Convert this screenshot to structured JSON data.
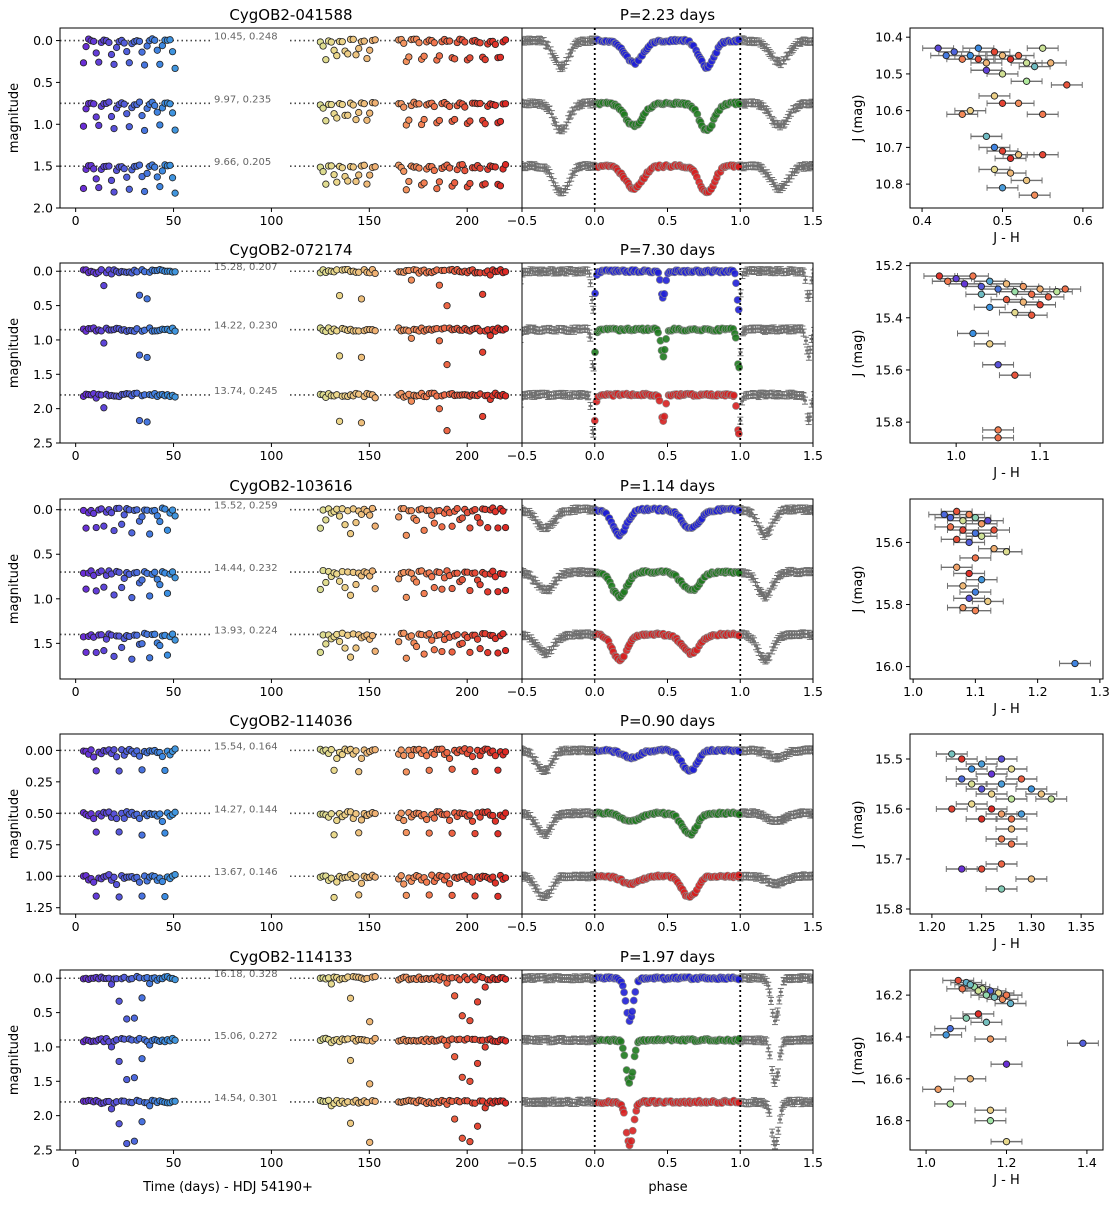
{
  "figure": {
    "xlabel_time": "Time (days) - HDJ 54190+",
    "xlabel_phase": "phase",
    "xlabel_cmd": "J - H",
    "ylabel_lc": "magnitude",
    "ylabel_cmd": "J (mag)"
  },
  "colors": {
    "line_J": "#1f1fd6",
    "line_H": "#1e7a1e",
    "line_K": "#d62020",
    "errbar": "#707070",
    "dotted": "#444444"
  },
  "chart_data": [
    {
      "type": "scatter",
      "title": "CygOB2-041588",
      "period_label": "P=2.23 days",
      "ylim": [
        2.0,
        -0.15
      ],
      "yticks": [
        0.0,
        0.5,
        1.0,
        1.5,
        2.0
      ],
      "xlim_time": [
        -8,
        228
      ],
      "xticks_time": [
        0,
        50,
        100,
        150,
        200
      ],
      "xlim_phase": [
        -0.5,
        1.5
      ],
      "xticks_phase": [
        -0.5,
        0.0,
        0.5,
        1.0,
        1.5
      ],
      "bands": [
        {
          "offset": 0.0,
          "label": "10.45,  0.248"
        },
        {
          "offset": 0.75,
          "label": "9.97,  0.235"
        },
        {
          "offset": 1.5,
          "label": "9.66,  0.205"
        }
      ],
      "eclipses": [
        {
          "c": 0.27,
          "w": 0.06,
          "d": 0.27
        },
        {
          "c": 0.77,
          "w": 0.05,
          "d": 0.32
        }
      ],
      "cmd": {
        "xlim": [
          0.385,
          0.625
        ],
        "xticks": [
          0.4,
          0.5,
          0.6
        ],
        "ylim": [
          10.865,
          10.375
        ],
        "yticks": [
          10.4,
          10.5,
          10.6,
          10.7,
          10.8
        ],
        "points": [
          [
            0.42,
            10.43
          ],
          [
            0.43,
            10.45
          ],
          [
            0.44,
            10.44
          ],
          [
            0.45,
            10.46
          ],
          [
            0.46,
            10.45
          ],
          [
            0.47,
            10.43
          ],
          [
            0.48,
            10.47
          ],
          [
            0.49,
            10.44
          ],
          [
            0.5,
            10.45
          ],
          [
            0.51,
            10.46
          ],
          [
            0.52,
            10.45
          ],
          [
            0.53,
            10.47
          ],
          [
            0.47,
            10.46
          ],
          [
            0.55,
            10.43
          ],
          [
            0.54,
            10.48
          ],
          [
            0.56,
            10.47
          ],
          [
            0.5,
            10.5
          ],
          [
            0.53,
            10.52
          ],
          [
            0.48,
            10.49
          ],
          [
            0.58,
            10.53
          ],
          [
            0.5,
            10.58
          ],
          [
            0.49,
            10.56
          ],
          [
            0.45,
            10.61
          ],
          [
            0.46,
            10.6
          ],
          [
            0.52,
            10.58
          ],
          [
            0.55,
            10.61
          ],
          [
            0.48,
            10.67
          ],
          [
            0.49,
            10.7
          ],
          [
            0.5,
            10.71
          ],
          [
            0.51,
            10.73
          ],
          [
            0.52,
            10.72
          ],
          [
            0.55,
            10.72
          ],
          [
            0.49,
            10.76
          ],
          [
            0.51,
            10.77
          ],
          [
            0.53,
            10.79
          ],
          [
            0.5,
            10.81
          ],
          [
            0.54,
            10.83
          ]
        ]
      }
    },
    {
      "type": "scatter",
      "title": "CygOB2-072174",
      "period_label": "P=7.30 days",
      "ylim": [
        2.5,
        -0.12
      ],
      "yticks": [
        0.0,
        0.5,
        1.0,
        1.5,
        2.0,
        2.5
      ],
      "xlim_time": [
        -8,
        228
      ],
      "xticks_time": [
        0,
        50,
        100,
        150,
        200
      ],
      "xlim_phase": [
        -0.5,
        1.5
      ],
      "xticks_phase": [
        -0.5,
        0.0,
        0.5,
        1.0,
        1.5
      ],
      "bands": [
        {
          "offset": 0.0,
          "label": "15.28,  0.207"
        },
        {
          "offset": 0.85,
          "label": "14.22,  0.230"
        },
        {
          "offset": 1.8,
          "label": "13.74,  0.245"
        }
      ],
      "eclipses": [
        {
          "c": 0.47,
          "w": 0.015,
          "d": 0.38
        },
        {
          "c": 0.99,
          "w": 0.012,
          "d": 0.55
        }
      ],
      "cmd": {
        "xlim": [
          0.945,
          1.175
        ],
        "xticks": [
          1.0,
          1.1
        ],
        "ylim": [
          15.88,
          15.19
        ],
        "yticks": [
          15.2,
          15.4,
          15.6,
          15.8
        ],
        "points": [
          [
            0.98,
            15.24
          ],
          [
            0.99,
            15.26
          ],
          [
            1.0,
            15.25
          ],
          [
            1.01,
            15.27
          ],
          [
            1.02,
            15.24
          ],
          [
            1.03,
            15.28
          ],
          [
            1.04,
            15.26
          ],
          [
            1.05,
            15.29
          ],
          [
            1.06,
            15.27
          ],
          [
            1.07,
            15.3
          ],
          [
            1.08,
            15.28
          ],
          [
            1.09,
            15.31
          ],
          [
            1.1,
            15.29
          ],
          [
            1.11,
            15.32
          ],
          [
            1.12,
            15.3
          ],
          [
            1.13,
            15.29
          ],
          [
            1.03,
            15.31
          ],
          [
            1.06,
            15.33
          ],
          [
            1.08,
            15.34
          ],
          [
            1.1,
            15.35
          ],
          [
            1.07,
            15.38
          ],
          [
            1.09,
            15.39
          ],
          [
            1.04,
            15.36
          ],
          [
            1.02,
            15.46
          ],
          [
            1.04,
            15.5
          ],
          [
            1.05,
            15.58
          ],
          [
            1.07,
            15.62
          ],
          [
            1.05,
            15.83
          ],
          [
            1.05,
            15.86
          ]
        ]
      }
    },
    {
      "type": "scatter",
      "title": "CygOB2-103616",
      "period_label": "P=1.14 days",
      "ylim": [
        1.9,
        -0.12
      ],
      "yticks": [
        0.0,
        0.5,
        1.0,
        1.5
      ],
      "xlim_time": [
        -8,
        228
      ],
      "xticks_time": [
        0,
        50,
        100,
        150,
        200
      ],
      "xlim_phase": [
        -0.5,
        1.5
      ],
      "xticks_phase": [
        -0.5,
        0.0,
        0.5,
        1.0,
        1.5
      ],
      "bands": [
        {
          "offset": 0.0,
          "label": "15.52,  0.259"
        },
        {
          "offset": 0.7,
          "label": "14.44,  0.232"
        },
        {
          "offset": 1.4,
          "label": "13.93,  0.224"
        }
      ],
      "eclipses": [
        {
          "c": 0.17,
          "w": 0.05,
          "d": 0.28
        },
        {
          "c": 0.66,
          "w": 0.06,
          "d": 0.21
        }
      ],
      "cmd": {
        "xlim": [
          0.995,
          1.305
        ],
        "xticks": [
          1.0,
          1.1,
          1.2,
          1.3
        ],
        "ylim": [
          16.04,
          15.46
        ],
        "yticks": [
          15.6,
          15.8,
          16.0
        ],
        "points": [
          [
            1.05,
            15.51
          ],
          [
            1.06,
            15.52
          ],
          [
            1.07,
            15.5
          ],
          [
            1.08,
            15.53
          ],
          [
            1.09,
            15.51
          ],
          [
            1.1,
            15.52
          ],
          [
            1.11,
            15.54
          ],
          [
            1.12,
            15.53
          ],
          [
            1.06,
            15.55
          ],
          [
            1.08,
            15.56
          ],
          [
            1.1,
            15.57
          ],
          [
            1.07,
            15.59
          ],
          [
            1.09,
            15.6
          ],
          [
            1.11,
            15.58
          ],
          [
            1.13,
            15.56
          ],
          [
            1.15,
            15.63
          ],
          [
            1.13,
            15.62
          ],
          [
            1.1,
            15.65
          ],
          [
            1.07,
            15.68
          ],
          [
            1.09,
            15.7
          ],
          [
            1.11,
            15.72
          ],
          [
            1.08,
            15.74
          ],
          [
            1.1,
            15.76
          ],
          [
            1.09,
            15.78
          ],
          [
            1.12,
            15.79
          ],
          [
            1.08,
            15.81
          ],
          [
            1.1,
            15.82
          ],
          [
            1.26,
            15.99
          ]
        ]
      }
    },
    {
      "type": "scatter",
      "title": "CygOB2-114036",
      "period_label": "P=0.90 days",
      "ylim": [
        1.3,
        -0.13
      ],
      "yticks": [
        0.0,
        0.25,
        0.5,
        0.75,
        1.0,
        1.25
      ],
      "xlim_time": [
        -8,
        228
      ],
      "xticks_time": [
        0,
        50,
        100,
        150,
        200
      ],
      "xlim_phase": [
        -0.5,
        1.5
      ],
      "xticks_phase": [
        -0.5,
        0.0,
        0.5,
        1.0,
        1.5
      ],
      "bands": [
        {
          "offset": 0.0,
          "label": "15.54,  0.164"
        },
        {
          "offset": 0.5,
          "label": "14.27,  0.144"
        },
        {
          "offset": 1.0,
          "label": "13.67,  0.146"
        }
      ],
      "eclipses": [
        {
          "c": 0.25,
          "w": 0.06,
          "d": 0.06
        },
        {
          "c": 0.65,
          "w": 0.05,
          "d": 0.17
        }
      ],
      "cmd": {
        "xlim": [
          1.178,
          1.372
        ],
        "xticks": [
          1.2,
          1.25,
          1.3,
          1.35
        ],
        "ylim": [
          15.81,
          15.45
        ],
        "yticks": [
          15.5,
          15.6,
          15.7,
          15.8
        ],
        "points": [
          [
            1.22,
            15.49
          ],
          [
            1.23,
            15.5
          ],
          [
            1.24,
            15.52
          ],
          [
            1.25,
            15.51
          ],
          [
            1.26,
            15.53
          ],
          [
            1.27,
            15.5
          ],
          [
            1.28,
            15.52
          ],
          [
            1.29,
            15.54
          ],
          [
            1.24,
            15.55
          ],
          [
            1.25,
            15.56
          ],
          [
            1.26,
            15.57
          ],
          [
            1.27,
            15.55
          ],
          [
            1.28,
            15.58
          ],
          [
            1.23,
            15.54
          ],
          [
            1.3,
            15.56
          ],
          [
            1.31,
            15.57
          ],
          [
            1.32,
            15.58
          ],
          [
            1.26,
            15.6
          ],
          [
            1.27,
            15.61
          ],
          [
            1.28,
            15.62
          ],
          [
            1.25,
            15.62
          ],
          [
            1.29,
            15.61
          ],
          [
            1.24,
            15.59
          ],
          [
            1.22,
            15.6
          ],
          [
            1.28,
            15.64
          ],
          [
            1.27,
            15.66
          ],
          [
            1.23,
            15.72
          ],
          [
            1.25,
            15.72
          ],
          [
            1.27,
            15.71
          ],
          [
            1.28,
            15.67
          ],
          [
            1.3,
            15.74
          ],
          [
            1.27,
            15.76
          ]
        ]
      }
    },
    {
      "type": "scatter",
      "title": "CygOB2-114133",
      "period_label": "P=1.97 days",
      "ylim": [
        2.5,
        -0.12
      ],
      "yticks": [
        0.0,
        0.5,
        1.0,
        1.5,
        2.0,
        2.5
      ],
      "xlim_time": [
        -8,
        228
      ],
      "xticks_time": [
        0,
        50,
        100,
        150,
        200
      ],
      "xlim_phase": [
        -0.5,
        1.5
      ],
      "xticks_phase": [
        -0.5,
        0.0,
        0.5,
        1.0,
        1.5
      ],
      "bands": [
        {
          "offset": 0.0,
          "label": "16.18,  0.328"
        },
        {
          "offset": 0.9,
          "label": "15.06,  0.272"
        },
        {
          "offset": 1.8,
          "label": "14.54,  0.301"
        }
      ],
      "eclipses": [
        {
          "c": 0.24,
          "w": 0.025,
          "d": 0.62
        }
      ],
      "cmd": {
        "xlim": [
          0.96,
          1.44
        ],
        "xticks": [
          1.0,
          1.2,
          1.4
        ],
        "ylim": [
          16.94,
          16.08
        ],
        "yticks": [
          16.2,
          16.4,
          16.6,
          16.8
        ],
        "points": [
          [
            1.08,
            16.13
          ],
          [
            1.1,
            16.14
          ],
          [
            1.12,
            16.16
          ],
          [
            1.14,
            16.17
          ],
          [
            1.16,
            16.18
          ],
          [
            1.18,
            16.19
          ],
          [
            1.11,
            16.15
          ],
          [
            1.13,
            16.18
          ],
          [
            1.15,
            16.2
          ],
          [
            1.17,
            16.21
          ],
          [
            1.19,
            16.22
          ],
          [
            1.21,
            16.24
          ],
          [
            1.2,
            16.2
          ],
          [
            1.09,
            16.17
          ],
          [
            1.13,
            16.29
          ],
          [
            1.1,
            16.31
          ],
          [
            1.15,
            16.33
          ],
          [
            1.06,
            16.36
          ],
          [
            1.05,
            16.39
          ],
          [
            1.16,
            16.41
          ],
          [
            1.39,
            16.43
          ],
          [
            1.2,
            16.53
          ],
          [
            1.11,
            16.6
          ],
          [
            1.03,
            16.65
          ],
          [
            1.06,
            16.72
          ],
          [
            1.16,
            16.75
          ],
          [
            1.16,
            16.8
          ],
          [
            1.2,
            16.9
          ]
        ]
      }
    }
  ]
}
